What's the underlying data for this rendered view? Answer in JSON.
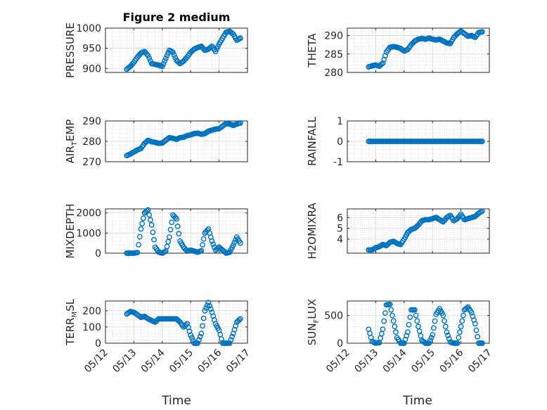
{
  "figure": {
    "title": "Figure 2 medium",
    "xlabel": "Time"
  },
  "x_ticks": [
    "05/12",
    "05/13",
    "05/14",
    "05/15",
    "05/16",
    "05/17"
  ],
  "marker_color": "#0072BD",
  "chart_data": [
    {
      "id": "pressure",
      "type": "scatter",
      "ylabel": "PRESSURE",
      "ylim": [
        890,
        1000
      ],
      "yticks": [
        900,
        950,
        1000
      ],
      "yticklabels": [
        "900",
        "950",
        "1000"
      ],
      "grid": true,
      "xaxis_ticklabels": false,
      "series": [
        {
          "x": [
            "05/12 18:00",
            "05/12 21:00",
            "05/13 00:00",
            "05/13 03:00",
            "05/13 06:00",
            "05/13 09:00",
            "05/13 12:00",
            "05/13 15:00",
            "05/13 18:00",
            "05/13 21:00",
            "05/14 00:00",
            "05/14 03:00",
            "05/14 06:00",
            "05/14 09:00",
            "05/14 12:00",
            "05/14 15:00",
            "05/14 18:00",
            "05/14 21:00",
            "05/15 00:00",
            "05/15 03:00",
            "05/15 06:00",
            "05/15 09:00",
            "05/15 12:00",
            "05/15 15:00",
            "05/15 18:00",
            "05/15 21:00",
            "05/16 00:00",
            "05/16 03:00",
            "05/16 06:00",
            "05/16 09:00",
            "05/16 12:00",
            "05/16 15:00",
            "05/16 18:00"
          ],
          "y": [
            898,
            905,
            915,
            928,
            938,
            942,
            932,
            912,
            910,
            908,
            905,
            925,
            945,
            940,
            920,
            912,
            918,
            928,
            940,
            948,
            952,
            955,
            945,
            948,
            955,
            942,
            960,
            975,
            990,
            992,
            985,
            970,
            975
          ]
        }
      ]
    },
    {
      "id": "theta",
      "type": "scatter",
      "ylabel": "THETA",
      "ylim": [
        280,
        292
      ],
      "yticks": [
        280,
        285,
        290
      ],
      "yticklabels": [
        "280",
        "285",
        "290"
      ],
      "grid": true,
      "xaxis_ticklabels": false,
      "series": [
        {
          "x": [
            "05/12 18:00",
            "05/12 21:00",
            "05/13 00:00",
            "05/13 03:00",
            "05/13 06:00",
            "05/13 09:00",
            "05/13 12:00",
            "05/13 15:00",
            "05/13 18:00",
            "05/13 21:00",
            "05/14 00:00",
            "05/14 03:00",
            "05/14 06:00",
            "05/14 09:00",
            "05/14 12:00",
            "05/14 15:00",
            "05/14 18:00",
            "05/14 21:00",
            "05/15 00:00",
            "05/15 03:00",
            "05/15 06:00",
            "05/15 09:00",
            "05/15 12:00",
            "05/15 15:00",
            "05/15 18:00",
            "05/15 21:00",
            "05/16 00:00",
            "05/16 03:00",
            "05/16 06:00",
            "05/16 09:00",
            "05/16 12:00",
            "05/16 15:00",
            "05/16 18:00"
          ],
          "y": [
            281.5,
            281.8,
            282.0,
            281.7,
            282.5,
            285.5,
            286.8,
            287.0,
            286.8,
            286.5,
            285.8,
            286.2,
            287.5,
            288.5,
            289.0,
            289.2,
            289.0,
            289.3,
            289.0,
            288.8,
            289.0,
            288.5,
            288.0,
            287.8,
            289.5,
            290.5,
            291.2,
            290.5,
            289.8,
            290.0,
            289.5,
            290.8,
            291.0
          ]
        }
      ]
    },
    {
      "id": "air_temp",
      "type": "scatter",
      "ylabel": "AIR_TEMP",
      "ylim": [
        270,
        290
      ],
      "yticks": [
        270,
        280,
        290
      ],
      "yticklabels": [
        "270",
        "280",
        "290"
      ],
      "grid": true,
      "xaxis_ticklabels": false,
      "series": [
        {
          "x": [
            "05/12 18:00",
            "05/12 21:00",
            "05/13 00:00",
            "05/13 03:00",
            "05/13 06:00",
            "05/13 09:00",
            "05/13 12:00",
            "05/13 15:00",
            "05/13 18:00",
            "05/13 21:00",
            "05/14 00:00",
            "05/14 03:00",
            "05/14 06:00",
            "05/14 09:00",
            "05/14 12:00",
            "05/14 15:00",
            "05/14 18:00",
            "05/14 21:00",
            "05/15 00:00",
            "05/15 03:00",
            "05/15 06:00",
            "05/15 09:00",
            "05/15 12:00",
            "05/15 15:00",
            "05/15 18:00",
            "05/15 21:00",
            "05/16 00:00",
            "05/16 03:00",
            "05/16 06:00",
            "05/16 09:00",
            "05/16 12:00",
            "05/16 15:00",
            "05/16 18:00"
          ],
          "y": [
            273.0,
            273.8,
            274.8,
            275.8,
            276.5,
            279.0,
            280.5,
            279.8,
            279.5,
            279.0,
            279.2,
            280.5,
            281.8,
            281.5,
            281.0,
            281.8,
            282.0,
            282.8,
            283.2,
            283.8,
            284.0,
            283.5,
            283.8,
            285.0,
            285.5,
            286.0,
            286.2,
            287.5,
            288.8,
            288.5,
            287.8,
            288.5,
            289.0
          ]
        }
      ]
    },
    {
      "id": "rainfall",
      "type": "scatter",
      "ylabel": "RAINFALL",
      "ylim": [
        -1,
        1
      ],
      "yticks": [
        -1,
        0,
        1
      ],
      "yticklabels": [
        "-1",
        "0",
        "1"
      ],
      "grid": true,
      "xaxis_ticklabels": false,
      "series": [
        {
          "x_range": [
            "05/12 18:00",
            "05/16 18:00"
          ],
          "y_constant": 0
        }
      ]
    },
    {
      "id": "mixdepth",
      "type": "scatter",
      "ylabel": "MIXDEPTH",
      "ylim": [
        0,
        2200
      ],
      "yticks": [
        0,
        1000,
        2000
      ],
      "yticklabels": [
        "0",
        "1000",
        "2000"
      ],
      "grid": true,
      "xaxis_ticklabels": false,
      "series": [
        {
          "x": [
            "05/12 18:00",
            "05/12 21:00",
            "05/13 00:00",
            "05/13 03:00",
            "05/13 06:00",
            "05/13 09:00",
            "05/13 12:00",
            "05/13 15:00",
            "05/13 18:00",
            "05/13 21:00",
            "05/14 00:00",
            "05/14 03:00",
            "05/14 06:00",
            "05/14 09:00",
            "05/14 12:00",
            "05/14 15:00",
            "05/14 18:00",
            "05/14 21:00",
            "05/15 00:00",
            "05/15 03:00",
            "05/15 06:00",
            "05/15 09:00",
            "05/15 12:00",
            "05/15 15:00",
            "05/15 18:00",
            "05/15 21:00",
            "05/16 00:00",
            "05/16 03:00",
            "05/16 06:00",
            "05/16 09:00",
            "05/16 12:00",
            "05/16 15:00",
            "05/16 18:00"
          ],
          "y": [
            0,
            0,
            0,
            30,
            1200,
            2000,
            2150,
            1400,
            300,
            50,
            0,
            100,
            800,
            1900,
            1700,
            600,
            300,
            100,
            150,
            100,
            50,
            120,
            1000,
            1200,
            600,
            150,
            300,
            150,
            0,
            50,
            400,
            800,
            500
          ]
        }
      ]
    },
    {
      "id": "h2omixra",
      "type": "scatter",
      "ylabel": "H2OMIXRA",
      "ylim": [
        2.7,
        6.8
      ],
      "yticks": [
        4,
        5,
        6
      ],
      "yticklabels": [
        "4",
        "5",
        "6"
      ],
      "grid": true,
      "xaxis_ticklabels": false,
      "series": [
        {
          "x": [
            "05/12 18:00",
            "05/12 21:00",
            "05/13 00:00",
            "05/13 03:00",
            "05/13 06:00",
            "05/13 09:00",
            "05/13 12:00",
            "05/13 15:00",
            "05/13 18:00",
            "05/13 21:00",
            "05/14 00:00",
            "05/14 03:00",
            "05/14 06:00",
            "05/14 09:00",
            "05/14 12:00",
            "05/14 15:00",
            "05/14 18:00",
            "05/14 21:00",
            "05/15 00:00",
            "05/15 03:00",
            "05/15 06:00",
            "05/15 09:00",
            "05/15 12:00",
            "05/15 15:00",
            "05/15 18:00",
            "05/15 21:00",
            "05/16 00:00",
            "05/16 03:00",
            "05/16 06:00",
            "05/16 09:00",
            "05/16 12:00",
            "05/16 15:00",
            "05/16 18:00"
          ],
          "y": [
            3.0,
            3.0,
            3.2,
            3.3,
            3.5,
            3.4,
            3.7,
            3.8,
            3.6,
            3.5,
            4.0,
            4.6,
            4.9,
            5.0,
            5.3,
            5.7,
            5.8,
            5.8,
            5.9,
            6.0,
            5.8,
            5.6,
            6.0,
            6.2,
            5.7,
            5.9,
            6.3,
            5.8,
            5.9,
            6.0,
            6.1,
            6.4,
            6.6
          ]
        }
      ]
    },
    {
      "id": "terr_msl",
      "type": "scatter",
      "ylabel": "TERR_MSL",
      "ylim": [
        0,
        260
      ],
      "yticks": [
        0,
        100,
        200
      ],
      "yticklabels": [
        "0",
        "100",
        "200"
      ],
      "grid": true,
      "xaxis_ticklabels": true,
      "series": [
        {
          "x": [
            "05/12 18:00",
            "05/12 21:00",
            "05/13 00:00",
            "05/13 03:00",
            "05/13 06:00",
            "05/13 09:00",
            "05/13 12:00",
            "05/13 15:00",
            "05/13 18:00",
            "05/13 21:00",
            "05/14 00:00",
            "05/14 03:00",
            "05/14 06:00",
            "05/14 09:00",
            "05/14 12:00",
            "05/14 15:00",
            "05/14 18:00",
            "05/14 21:00",
            "05/15 00:00",
            "05/15 03:00",
            "05/15 06:00",
            "05/15 09:00",
            "05/15 12:00",
            "05/15 15:00",
            "05/15 18:00",
            "05/15 21:00",
            "05/16 00:00",
            "05/16 03:00",
            "05/16 06:00",
            "05/16 09:00",
            "05/16 12:00",
            "05/16 15:00",
            "05/16 18:00"
          ],
          "y": [
            180,
            195,
            190,
            175,
            160,
            165,
            150,
            140,
            130,
            150,
            150,
            150,
            150,
            150,
            150,
            130,
            100,
            120,
            50,
            0,
            0,
            60,
            200,
            250,
            190,
            120,
            80,
            0,
            0,
            0,
            60,
            130,
            150
          ]
        }
      ]
    },
    {
      "id": "sunflux",
      "type": "scatter",
      "ylabel": "SUN_FLUX",
      "ylim": [
        0,
        760
      ],
      "yticks": [
        0,
        500
      ],
      "yticklabels": [
        "0",
        "500"
      ],
      "grid": true,
      "xaxis_ticklabels": true,
      "series": [
        {
          "x": [
            "05/12 18:00",
            "05/12 21:00",
            "05/13 00:00",
            "05/13 03:00",
            "05/13 06:00",
            "05/13 09:00",
            "05/13 12:00",
            "05/13 15:00",
            "05/13 18:00",
            "05/13 21:00",
            "05/14 00:00",
            "05/14 03:00",
            "05/14 06:00",
            "05/14 09:00",
            "05/14 12:00",
            "05/14 15:00",
            "05/14 18:00",
            "05/14 21:00",
            "05/15 00:00",
            "05/15 03:00",
            "05/15 06:00",
            "05/15 09:00",
            "05/15 12:00",
            "05/15 15:00",
            "05/15 18:00",
            "05/15 21:00",
            "05/16 00:00",
            "05/16 03:00",
            "05/16 06:00",
            "05/16 09:00",
            "05/16 12:00",
            "05/16 15:00",
            "05/16 18:00"
          ],
          "y": [
            250,
            30,
            0,
            10,
            250,
            690,
            700,
            400,
            100,
            0,
            0,
            200,
            600,
            600,
            300,
            50,
            0,
            0,
            150,
            520,
            620,
            500,
            200,
            20,
            0,
            0,
            300,
            600,
            650,
            550,
            350,
            0,
            0
          ]
        }
      ]
    }
  ]
}
